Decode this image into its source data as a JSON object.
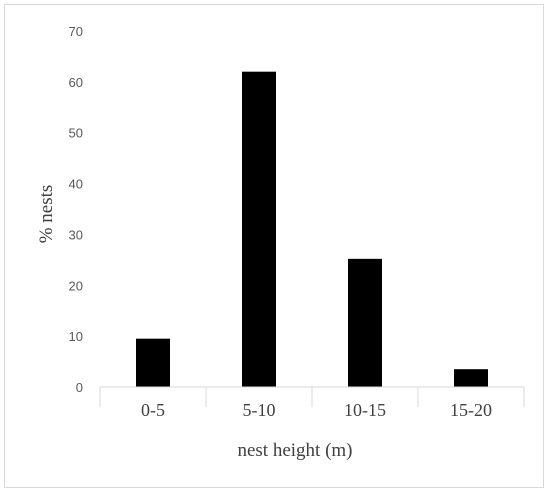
{
  "chart_data": {
    "type": "bar",
    "title": "",
    "categories": [
      "0-5",
      "5-10",
      "10-15",
      "15-20"
    ],
    "values": [
      9.5,
      62,
      25.2,
      3.5
    ],
    "xlabel": "nest height (m)",
    "ylabel": "% nests",
    "ylim": [
      0,
      70
    ],
    "yticks": [
      0,
      10,
      20,
      30,
      40,
      50,
      60,
      70
    ],
    "grid": false,
    "legend": "none",
    "bar_color": "#000000",
    "axis_color": "#d9d9d9"
  }
}
